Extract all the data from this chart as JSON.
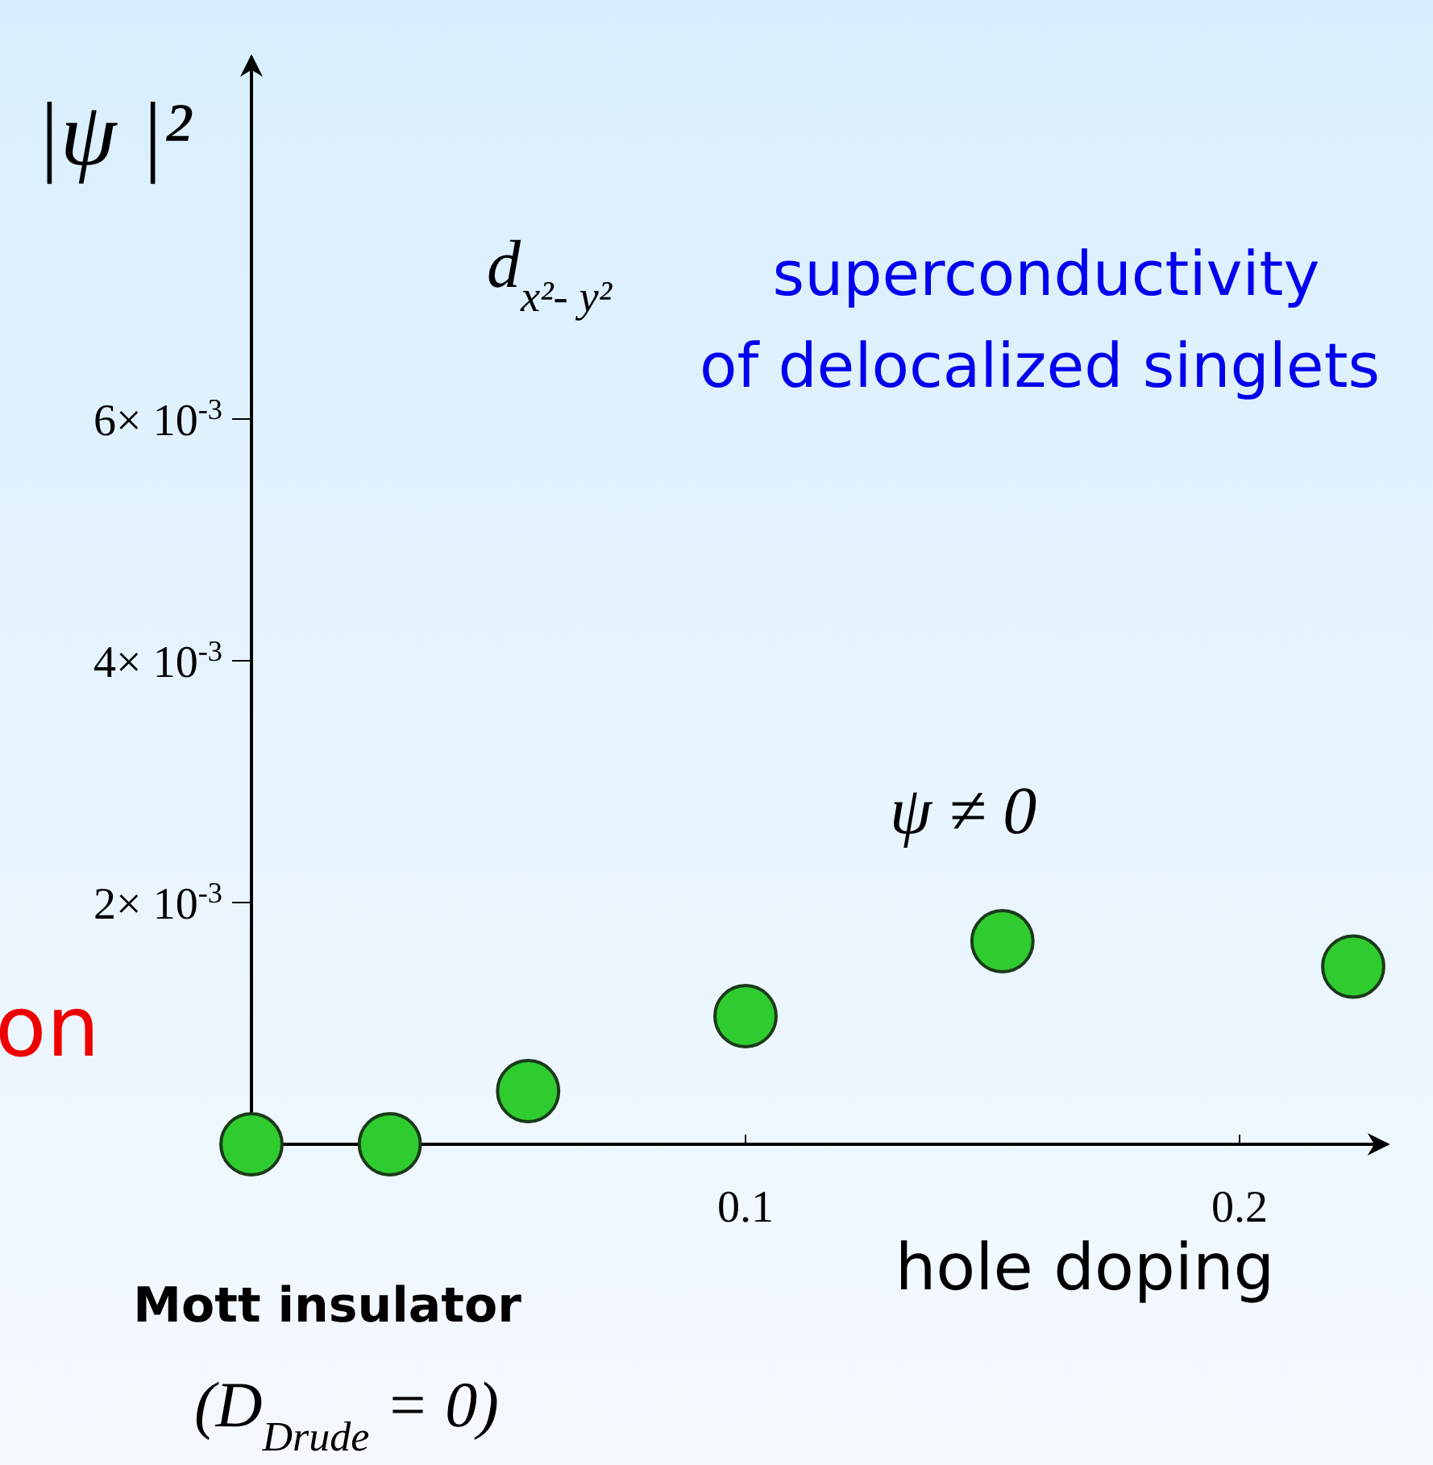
{
  "chart_data": {
    "type": "scatter",
    "xlabel": "hole doping",
    "ylabel": "|ψ |²",
    "x": [
      0,
      0.028,
      0.056,
      0.1,
      0.152,
      0.223
    ],
    "series": [
      {
        "color": "#2fcc2f",
        "values": [
          0,
          0,
          0.00044,
          0.00106,
          0.00168,
          0.00147
        ]
      }
    ],
    "marker": "circle",
    "xlim": [
      0,
      0.23
    ],
    "xticks": [
      0.1,
      0.2
    ],
    "ylim": [
      0,
      0.009
    ],
    "yticks": [
      {
        "value": 0.002,
        "label": "2× 10$^{-3}$"
      },
      {
        "value": 0.004,
        "label": "4× 10$^{-3}$"
      },
      {
        "value": 0.006,
        "label": "6× 10$^{-3}$"
      }
    ],
    "grid": false,
    "annotations": [
      "d$_{x²- y²}$",
      "superconductivity",
      "of delocalized singlets",
      "ψ  ≠  0",
      "Mott insulator",
      "(D$_{Drude}$ = 0)",
      "on"
    ]
  }
}
